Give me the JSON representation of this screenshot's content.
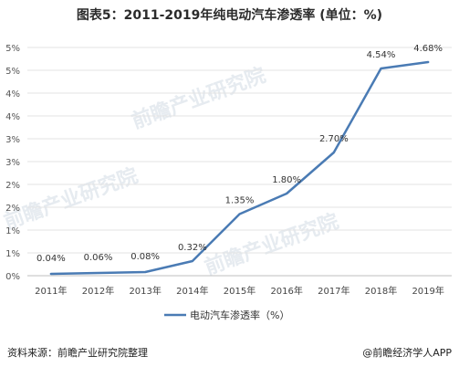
{
  "title": "图表5：2011-2019年纯电动汽车渗透率 (单位：%)",
  "footer": {
    "source": "资料来源：前瞻产业研究院整理",
    "brand": "@前瞻经济学人APP"
  },
  "watermarks": [
    "前瞻产业研究院",
    "前瞻产业研究院",
    "前瞻产业研究院"
  ],
  "chart_data": {
    "type": "line",
    "title": "图表5：2011-2019年纯电动汽车渗透率 (单位：%)",
    "xlabel": "",
    "ylabel": "",
    "categories": [
      "2011年",
      "2012年",
      "2013年",
      "2014年",
      "2015年",
      "2016年",
      "2017年",
      "2018年",
      "2019年"
    ],
    "series": [
      {
        "name": "电动汽车渗透率（%）",
        "values": [
          0.04,
          0.06,
          0.08,
          0.32,
          1.35,
          1.8,
          2.7,
          4.54,
          4.68
        ],
        "data_labels": [
          "0.04%",
          "0.06%",
          "0.08%",
          "0.32%",
          "1.35%",
          "1.80%",
          "2.70%",
          "4.54%",
          "4.68%"
        ],
        "color": "#4a7bb4"
      }
    ],
    "y_ticks": [
      {
        "value": 0,
        "label": "0%"
      },
      {
        "value": 0.5,
        "label": "1%"
      },
      {
        "value": 1.0,
        "label": "1%"
      },
      {
        "value": 1.5,
        "label": "2%"
      },
      {
        "value": 2.0,
        "label": "2%"
      },
      {
        "value": 2.5,
        "label": "3%"
      },
      {
        "value": 3.0,
        "label": "3%"
      },
      {
        "value": 3.5,
        "label": "4%"
      },
      {
        "value": 4.0,
        "label": "4%"
      },
      {
        "value": 4.5,
        "label": "5%"
      },
      {
        "value": 5.0,
        "label": "5%"
      }
    ],
    "ylim": [
      0,
      5.0
    ],
    "grid": true,
    "legend_position": "bottom-center"
  }
}
